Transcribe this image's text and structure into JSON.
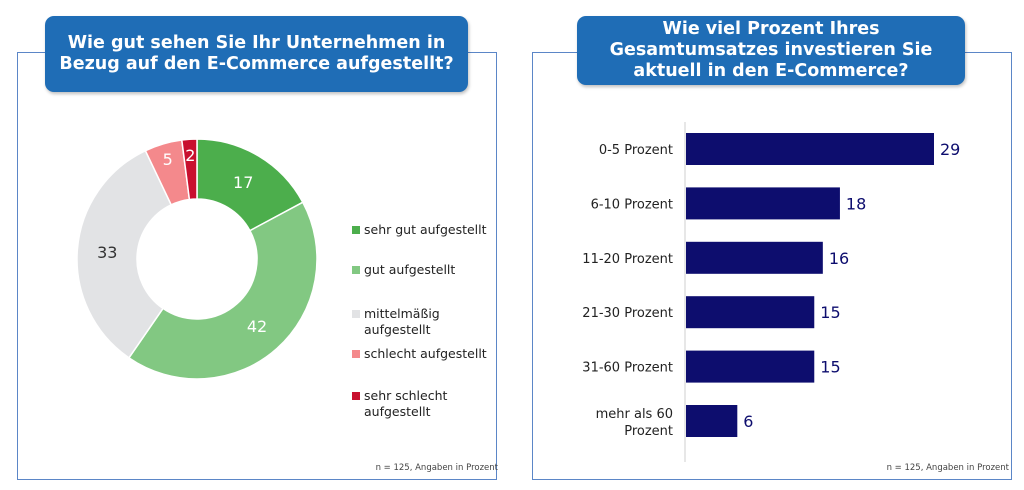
{
  "left_panel": {
    "title": "Wie gut sehen Sie Ihr Unternehmen in Bezug auf den E-Commerce aufgestellt?",
    "footnote": "n = 125, Angaben in Prozent"
  },
  "right_panel": {
    "title": "Wie viel Prozent Ihres Gesamtumsatzes investieren Sie aktuell in den E-Commerce?",
    "footnote": "n = 125, Angaben in Prozent"
  },
  "colors": {
    "title_bg": "#1f6db6",
    "border": "#5b86c7",
    "bar": "#0d0d6e"
  },
  "chart_data": [
    {
      "type": "pie",
      "donut": true,
      "title": "Wie gut sehen Sie Ihr Unternehmen in Bezug auf den E-Commerce aufgestellt?",
      "categories": [
        "sehr gut aufgestellt",
        "gut aufgestellt",
        "mittelmäßig aufgestellt",
        "schlecht aufgestellt",
        "sehr schlecht aufgestellt"
      ],
      "values": [
        17,
        42,
        33,
        5,
        2
      ],
      "colors": [
        "#4cae4c",
        "#82c882",
        "#e2e3e5",
        "#f4898c",
        "#c8102e"
      ],
      "legend_position": "right"
    },
    {
      "type": "bar",
      "orientation": "horizontal",
      "title": "Wie viel Prozent Ihres Gesamtumsatzes investieren Sie aktuell in den E-Commerce?",
      "categories": [
        "0-5 Prozent",
        "6-10 Prozent",
        "11-20 Prozent",
        "21-30 Prozent",
        "31-60 Prozent",
        "mehr als 60 Prozent"
      ],
      "values": [
        29,
        18,
        16,
        15,
        15,
        6
      ],
      "color": "#0d0d6e",
      "xlim": [
        0,
        29
      ]
    }
  ]
}
